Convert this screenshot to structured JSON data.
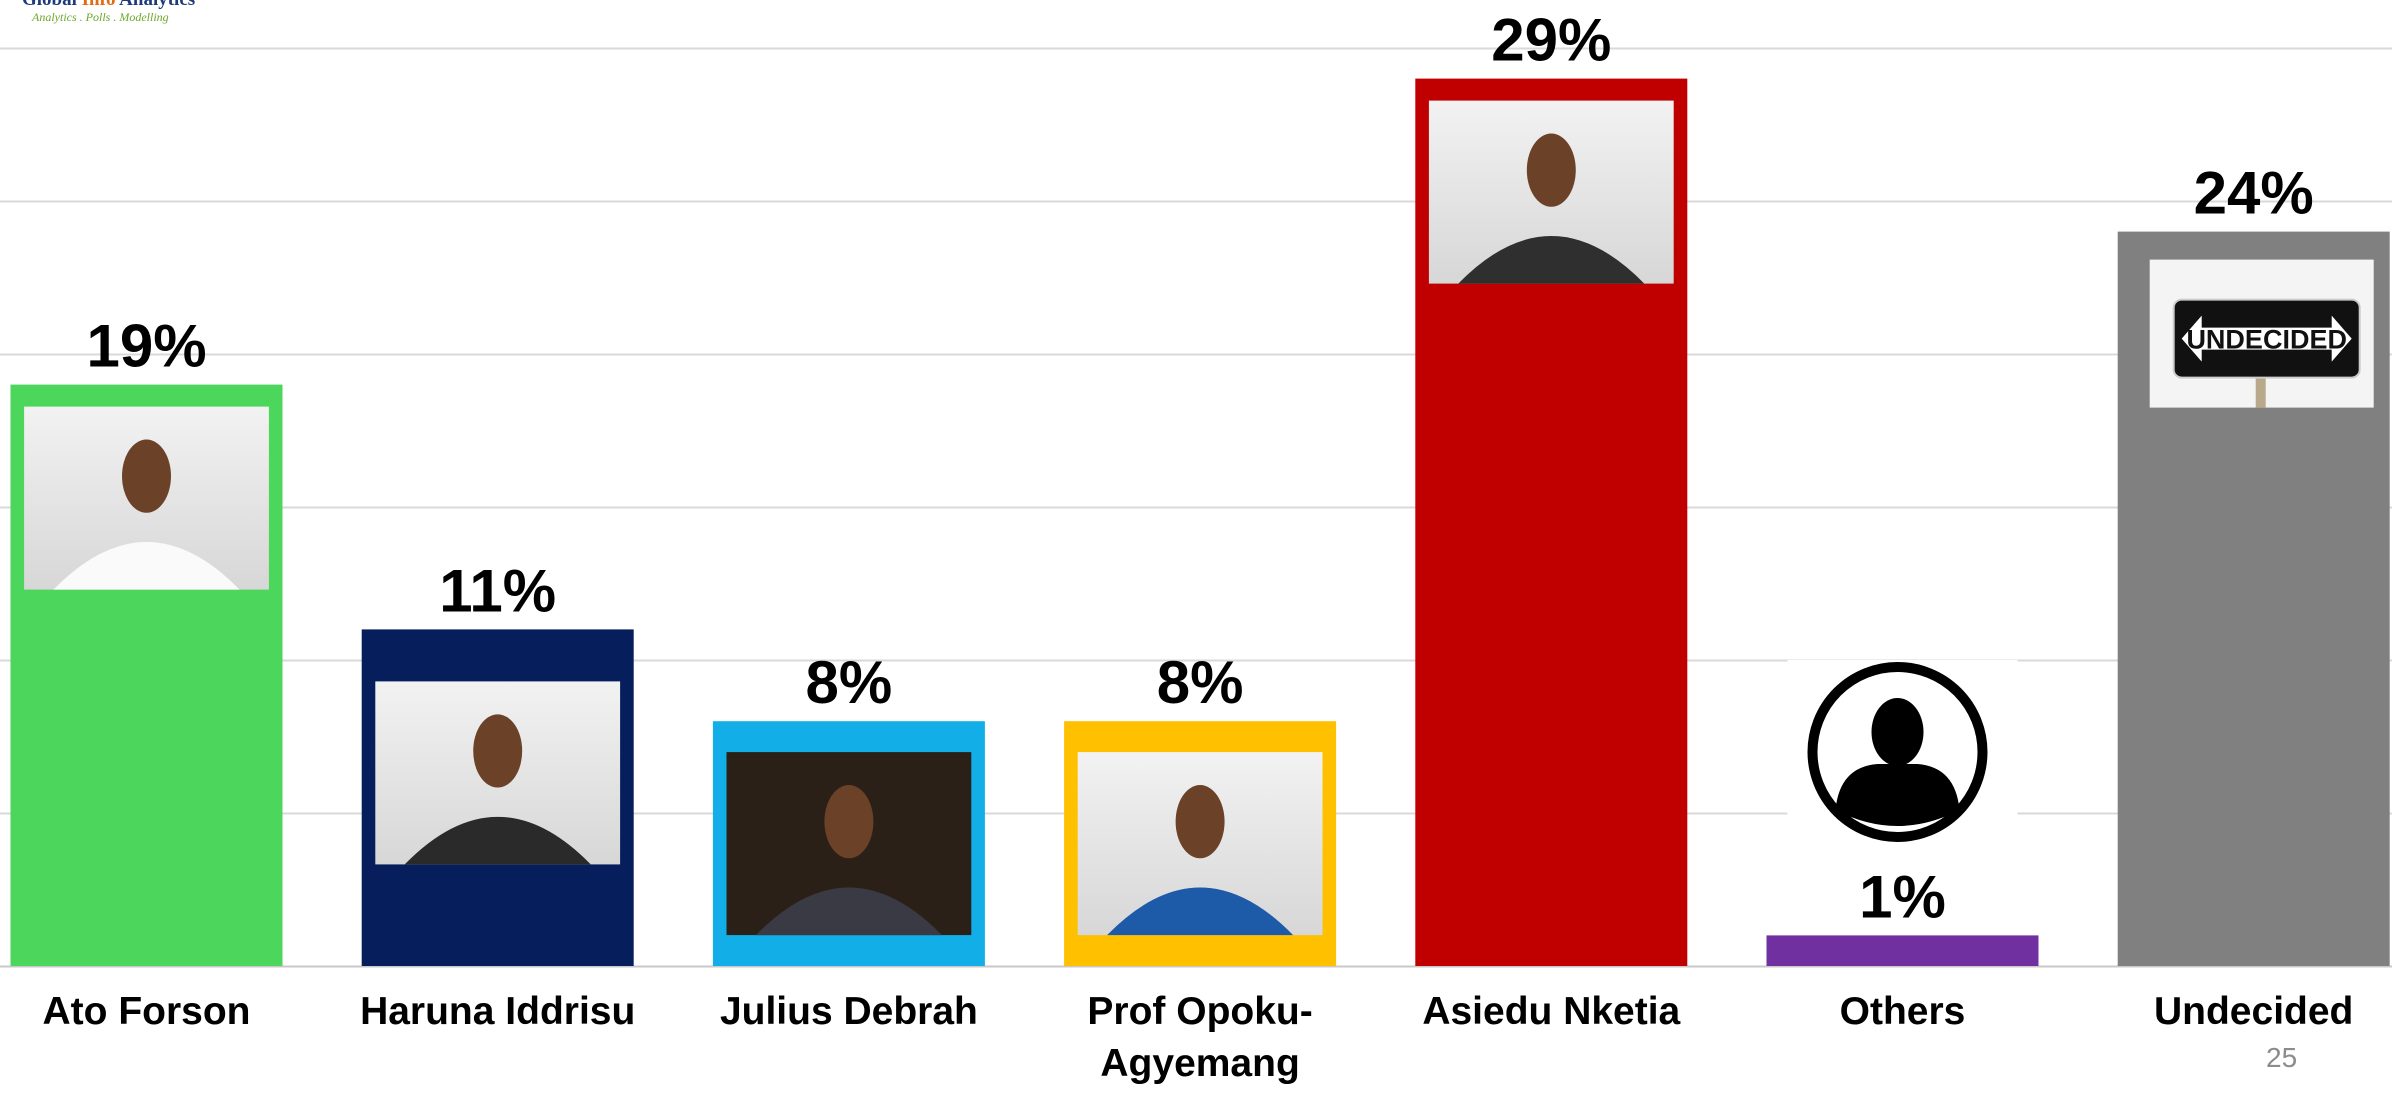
{
  "logo": {
    "name_part1": "Global ",
    "name_part2": "Info",
    "name_part3": " Analytics",
    "tagline": "Analytics . Polls . Modelling"
  },
  "chart_data": {
    "type": "bar",
    "categories": [
      "Ato Forson",
      "Haruna Iddrisu",
      "Julius Debrah",
      "Prof Opoku-Agyemang",
      "Asiedu Nketia",
      "Others",
      "Undecided"
    ],
    "category_label_lines": [
      [
        "Ato Forson"
      ],
      [
        "Haruna Iddrisu"
      ],
      [
        "Julius Debrah"
      ],
      [
        "Prof Opoku-",
        "Agyemang"
      ],
      [
        "Asiedu Nketia"
      ],
      [
        "Others"
      ],
      [
        "Undecided"
      ]
    ],
    "values": [
      19,
      11,
      8,
      8,
      29,
      1,
      24
    ],
    "data_labels": [
      "19%",
      "11%",
      "8%",
      "8%",
      "29%",
      "1%",
      "24%"
    ],
    "colors": [
      "#4cd65c",
      "#061f5c",
      "#12aee8",
      "#ffc000",
      "#c00000",
      "#7030a0",
      "#808080"
    ],
    "pictures": [
      "person-photo",
      "person-photo",
      "person-photo",
      "person-photo",
      "person-photo",
      "person-silhouette-icon",
      "undecided-sign"
    ],
    "sign_text": "UNDECIDED",
    "ylim": [
      0,
      30
    ],
    "grid": true,
    "legend": "none",
    "title": "",
    "xlabel": "",
    "ylabel": ""
  },
  "page": {
    "number": "25"
  }
}
